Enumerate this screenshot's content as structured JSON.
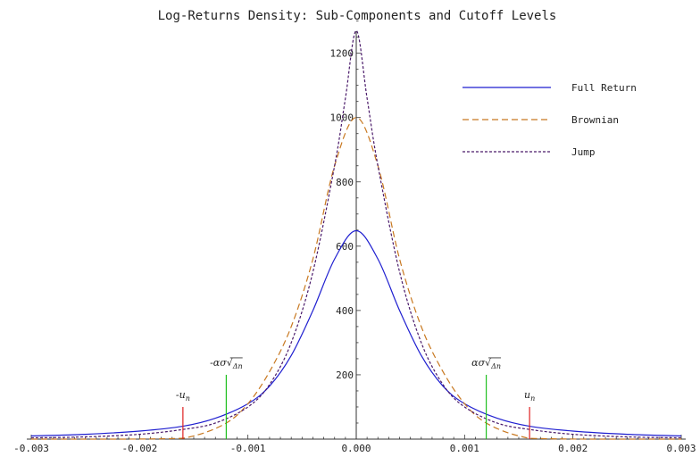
{
  "chart_data": {
    "type": "line",
    "title": "Log-Returns Density: Sub-Components and Cutoff Levels",
    "xlabel": "",
    "ylabel": "",
    "xlim": [
      -0.003,
      0.003
    ],
    "ylim": [
      0,
      1300
    ],
    "x_ticks": [
      -0.003,
      -0.002,
      -0.001,
      0.0,
      0.001,
      0.002,
      0.003
    ],
    "x_tick_labels": [
      "-0.003",
      "-0.002",
      "-0.001",
      "0.000",
      "0.001",
      "0.002",
      "0.003"
    ],
    "y_ticks": [
      200,
      400,
      600,
      800,
      1000,
      1200
    ],
    "y_tick_labels": [
      "200",
      "400",
      "600",
      "800",
      "1000",
      "1200"
    ],
    "grid": false,
    "legend_position": "top-right",
    "series": [
      {
        "name": "Full Return",
        "color": "#1f1fd0",
        "style": "solid",
        "x": [
          -0.003,
          -0.0025,
          -0.002,
          -0.0016,
          -0.0013,
          -0.001,
          -0.0008,
          -0.0006,
          -0.0004,
          -0.0002,
          0.0,
          0.0002,
          0.0004,
          0.0006,
          0.0008,
          0.001,
          0.0013,
          0.0016,
          0.002,
          0.0025,
          0.003
        ],
        "values": [
          10,
          15,
          25,
          40,
          65,
          110,
          165,
          260,
          400,
          560,
          648,
          560,
          400,
          260,
          165,
          110,
          65,
          40,
          25,
          15,
          10
        ]
      },
      {
        "name": "Brownian",
        "color": "#c87820",
        "style": "dashed",
        "x": [
          -0.003,
          -0.0018,
          -0.0015,
          -0.0012,
          -0.001,
          -0.0008,
          -0.0006,
          -0.0004,
          -0.0002,
          0.0,
          0.0002,
          0.0004,
          0.0006,
          0.0008,
          0.001,
          0.0012,
          0.0015,
          0.0018,
          0.003
        ],
        "values": [
          0,
          1,
          10,
          50,
          110,
          210,
          350,
          560,
          850,
          1000,
          850,
          560,
          350,
          210,
          110,
          50,
          10,
          1,
          0
        ]
      },
      {
        "name": "Jump",
        "color": "#4a1a6a",
        "style": "dotted",
        "x": [
          -0.003,
          -0.0025,
          -0.002,
          -0.0016,
          -0.0013,
          -0.001,
          -0.0008,
          -0.0006,
          -0.0004,
          -0.0002,
          -0.0001,
          0.0,
          0.0001,
          0.0002,
          0.0004,
          0.0006,
          0.0008,
          0.001,
          0.0013,
          0.0016,
          0.002,
          0.0025,
          0.003
        ],
        "values": [
          4,
          7,
          15,
          30,
          50,
          100,
          170,
          300,
          520,
          850,
          1060,
          1270,
          1060,
          850,
          520,
          300,
          170,
          100,
          50,
          30,
          15,
          7,
          4
        ]
      }
    ],
    "cutoff_lines": [
      {
        "x": -0.0016,
        "height": 100,
        "color": "#e02020",
        "label_main": "-u",
        "label_sub": "n"
      },
      {
        "x": -0.0012,
        "height": 200,
        "color": "#20c020",
        "label_main": "-ασ√",
        "label_sub": "Δn"
      },
      {
        "x": 0.0012,
        "height": 200,
        "color": "#20c020",
        "label_main": "ασ√",
        "label_sub": "Δn"
      },
      {
        "x": 0.0016,
        "height": 100,
        "color": "#e02020",
        "label_main": "u",
        "label_sub": "n"
      }
    ]
  }
}
